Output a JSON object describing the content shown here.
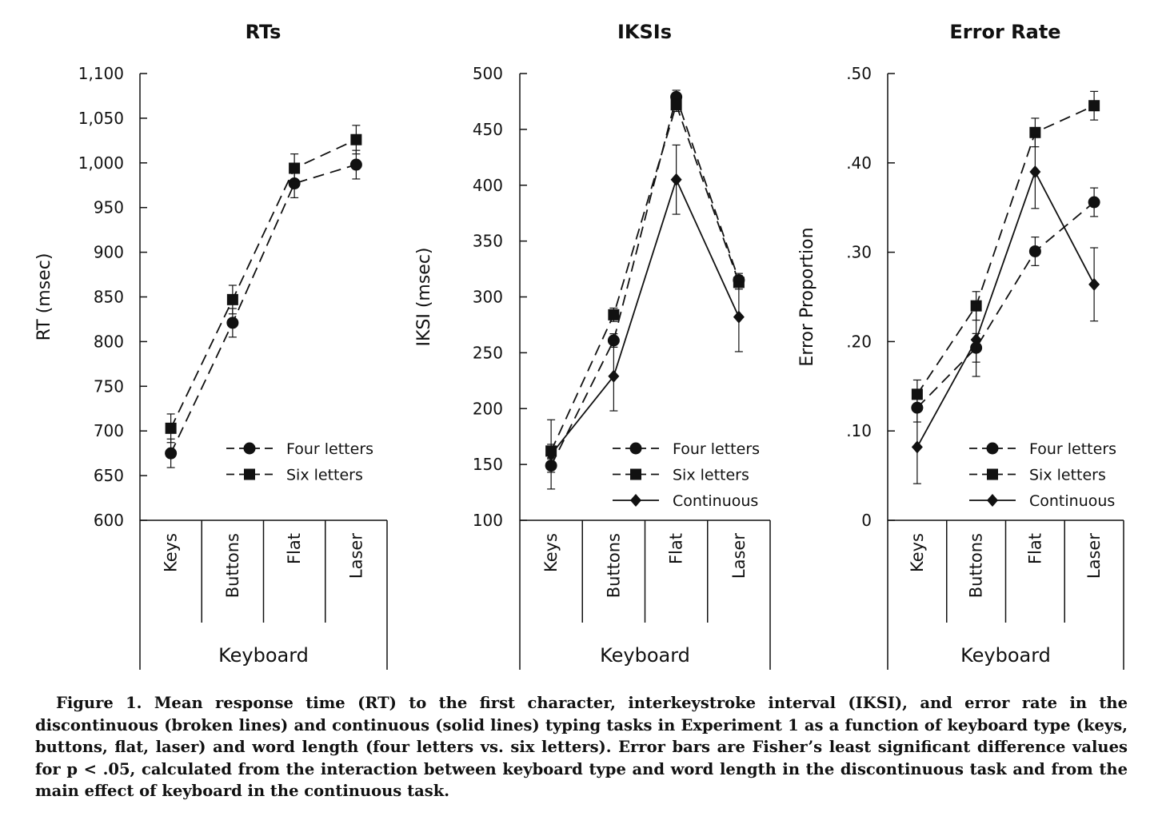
{
  "caption": "Figure 1. Mean response time (RT) to the first character, interkeystroke interval (IKSI), and error rate in the discontinuous (broken lines) and continuous (solid lines) typing tasks in Experiment 1 as a function of keyboard type (keys, buttons, flat, laser) and word length (four letters vs. six letters). Error bars are Fisher’s least significant difference values for p < .05, calculated from the interaction between keyboard type and word length in the discontinuous task and from the main effect of keyboard in the continuous task.",
  "chart_data": [
    {
      "type": "line",
      "title": "RTs",
      "xlabel": "Keyboard",
      "ylabel": "RT (msec)",
      "categories": [
        "Keys",
        "Buttons",
        "Flat",
        "Laser"
      ],
      "ylim": [
        600,
        1100
      ],
      "yticks": [
        600,
        650,
        700,
        750,
        800,
        850,
        900,
        950,
        1000,
        1050,
        1100
      ],
      "ytick_labels": [
        "600",
        "650",
        "700",
        "750",
        "800",
        "850",
        "900",
        "950",
        "1,000",
        "1,050",
        "1,100"
      ],
      "legend_position": "bottom-right",
      "series": [
        {
          "name": "Four letters",
          "marker": "circle",
          "line": "dashed",
          "values": [
            675,
            821,
            977,
            998
          ],
          "error": [
            16,
            16,
            16,
            16
          ]
        },
        {
          "name": "Six letters",
          "marker": "square",
          "line": "dashed",
          "values": [
            703,
            847,
            994,
            1026
          ],
          "error": [
            16,
            16,
            16,
            16
          ]
        }
      ]
    },
    {
      "type": "line",
      "title": "IKSIs",
      "xlabel": "Keyboard",
      "ylabel": "IKSI (msec)",
      "categories": [
        "Keys",
        "Buttons",
        "Flat",
        "Laser"
      ],
      "ylim": [
        100,
        500
      ],
      "yticks": [
        100,
        150,
        200,
        250,
        300,
        350,
        400,
        450,
        500
      ],
      "ytick_labels": [
        "100",
        "150",
        "200",
        "250",
        "300",
        "350",
        "400",
        "450",
        "500"
      ],
      "legend_position": "bottom-right",
      "series": [
        {
          "name": "Four letters",
          "marker": "circle",
          "line": "dashed",
          "values": [
            149,
            261,
            479,
            315
          ],
          "error": [
            6,
            6,
            6,
            6
          ]
        },
        {
          "name": "Six letters",
          "marker": "square",
          "line": "dashed",
          "values": [
            162,
            284,
            472,
            313
          ],
          "error": [
            6,
            6,
            6,
            6
          ]
        },
        {
          "name": "Continuous",
          "marker": "diamond",
          "line": "solid",
          "values": [
            159,
            229,
            405,
            282
          ],
          "error": [
            31,
            31,
            31,
            31
          ]
        }
      ]
    },
    {
      "type": "line",
      "title": "Error Rate",
      "xlabel": "Keyboard",
      "ylabel": "Error Proportion",
      "categories": [
        "Keys",
        "Buttons",
        "Flat",
        "Laser"
      ],
      "ylim": [
        0,
        0.5
      ],
      "yticks": [
        0,
        0.1,
        0.2,
        0.3,
        0.4,
        0.5
      ],
      "ytick_labels": [
        "0",
        ".10",
        ".20",
        ".30",
        ".40",
        ".50"
      ],
      "legend_position": "bottom-right",
      "series": [
        {
          "name": "Four letters",
          "marker": "circle",
          "line": "dashed",
          "values": [
            0.126,
            0.193,
            0.301,
            0.356
          ],
          "error": [
            0.016,
            0.016,
            0.016,
            0.016
          ]
        },
        {
          "name": "Six letters",
          "marker": "square",
          "line": "dashed",
          "values": [
            0.141,
            0.24,
            0.434,
            0.464
          ],
          "error": [
            0.016,
            0.016,
            0.016,
            0.016
          ]
        },
        {
          "name": "Continuous",
          "marker": "diamond",
          "line": "solid",
          "values": [
            0.082,
            0.202,
            0.39,
            0.264
          ],
          "error": [
            0.041,
            0.041,
            0.041,
            0.041
          ]
        }
      ]
    }
  ]
}
